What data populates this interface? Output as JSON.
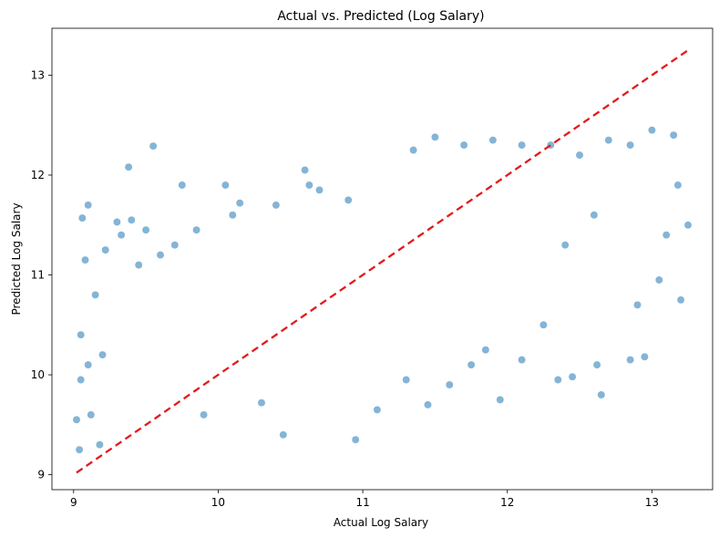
{
  "chart_data": {
    "type": "scatter",
    "title": "Actual vs. Predicted (Log Salary)",
    "xlabel": "Actual Log Salary",
    "ylabel": "Predicted Log Salary",
    "xlim": [
      8.85,
      13.42
    ],
    "ylim": [
      8.85,
      13.47
    ],
    "xticks": [
      9,
      10,
      11,
      12,
      13
    ],
    "yticks": [
      9,
      10,
      11,
      12,
      13
    ],
    "xtick_labels": [
      "9",
      "10",
      "11",
      "12",
      "13"
    ],
    "ytick_labels": [
      "9",
      "10",
      "11",
      "12",
      "13"
    ],
    "grid": false,
    "legend": "none",
    "point_color": "#1f77b4",
    "point_opacity": 0.55,
    "reference_line": {
      "x": [
        9.02,
        13.25
      ],
      "y": [
        9.02,
        13.25
      ],
      "color": "#e31a1c",
      "style": "dashed"
    },
    "series": [
      {
        "values": [
          [
            9.02,
            9.55
          ],
          [
            9.04,
            9.25
          ],
          [
            9.05,
            9.95
          ],
          [
            9.05,
            10.4
          ],
          [
            9.06,
            11.57
          ],
          [
            9.08,
            11.15
          ],
          [
            9.1,
            11.7
          ],
          [
            9.1,
            10.1
          ],
          [
            9.12,
            9.6
          ],
          [
            9.15,
            10.8
          ],
          [
            9.18,
            9.3
          ],
          [
            9.2,
            10.2
          ],
          [
            9.22,
            11.25
          ],
          [
            9.3,
            11.53
          ],
          [
            9.33,
            11.4
          ],
          [
            9.38,
            12.08
          ],
          [
            9.4,
            11.55
          ],
          [
            9.45,
            11.1
          ],
          [
            9.5,
            11.45
          ],
          [
            9.55,
            12.29
          ],
          [
            9.6,
            11.2
          ],
          [
            9.7,
            11.3
          ],
          [
            9.75,
            11.9
          ],
          [
            9.85,
            11.45
          ],
          [
            9.9,
            9.6
          ],
          [
            10.05,
            11.9
          ],
          [
            10.1,
            11.6
          ],
          [
            10.15,
            11.72
          ],
          [
            10.3,
            9.72
          ],
          [
            10.45,
            9.4
          ],
          [
            10.4,
            11.7
          ],
          [
            10.6,
            12.05
          ],
          [
            10.63,
            11.9
          ],
          [
            10.7,
            11.85
          ],
          [
            10.9,
            11.75
          ],
          [
            11.1,
            9.65
          ],
          [
            10.95,
            9.35
          ],
          [
            11.3,
            9.95
          ],
          [
            11.45,
            9.7
          ],
          [
            11.6,
            9.9
          ],
          [
            11.75,
            10.1
          ],
          [
            11.85,
            10.25
          ],
          [
            11.95,
            9.75
          ],
          [
            12.1,
            10.15
          ],
          [
            12.25,
            10.5
          ],
          [
            12.35,
            9.95
          ],
          [
            12.45,
            9.98
          ],
          [
            12.62,
            10.1
          ],
          [
            12.65,
            9.8
          ],
          [
            12.85,
            10.15
          ],
          [
            12.95,
            10.18
          ],
          [
            12.9,
            10.7
          ],
          [
            13.2,
            10.75
          ],
          [
            13.25,
            11.5
          ],
          [
            13.05,
            10.95
          ],
          [
            13.1,
            11.4
          ],
          [
            13.18,
            11.9
          ],
          [
            13.15,
            12.4
          ],
          [
            13.0,
            12.45
          ],
          [
            12.85,
            12.3
          ],
          [
            12.7,
            12.35
          ],
          [
            12.5,
            12.2
          ],
          [
            12.6,
            11.6
          ],
          [
            12.4,
            11.3
          ],
          [
            12.3,
            12.3
          ],
          [
            11.5,
            12.38
          ],
          [
            11.7,
            12.3
          ],
          [
            11.9,
            12.35
          ],
          [
            12.1,
            12.3
          ],
          [
            11.35,
            12.25
          ]
        ]
      }
    ]
  }
}
